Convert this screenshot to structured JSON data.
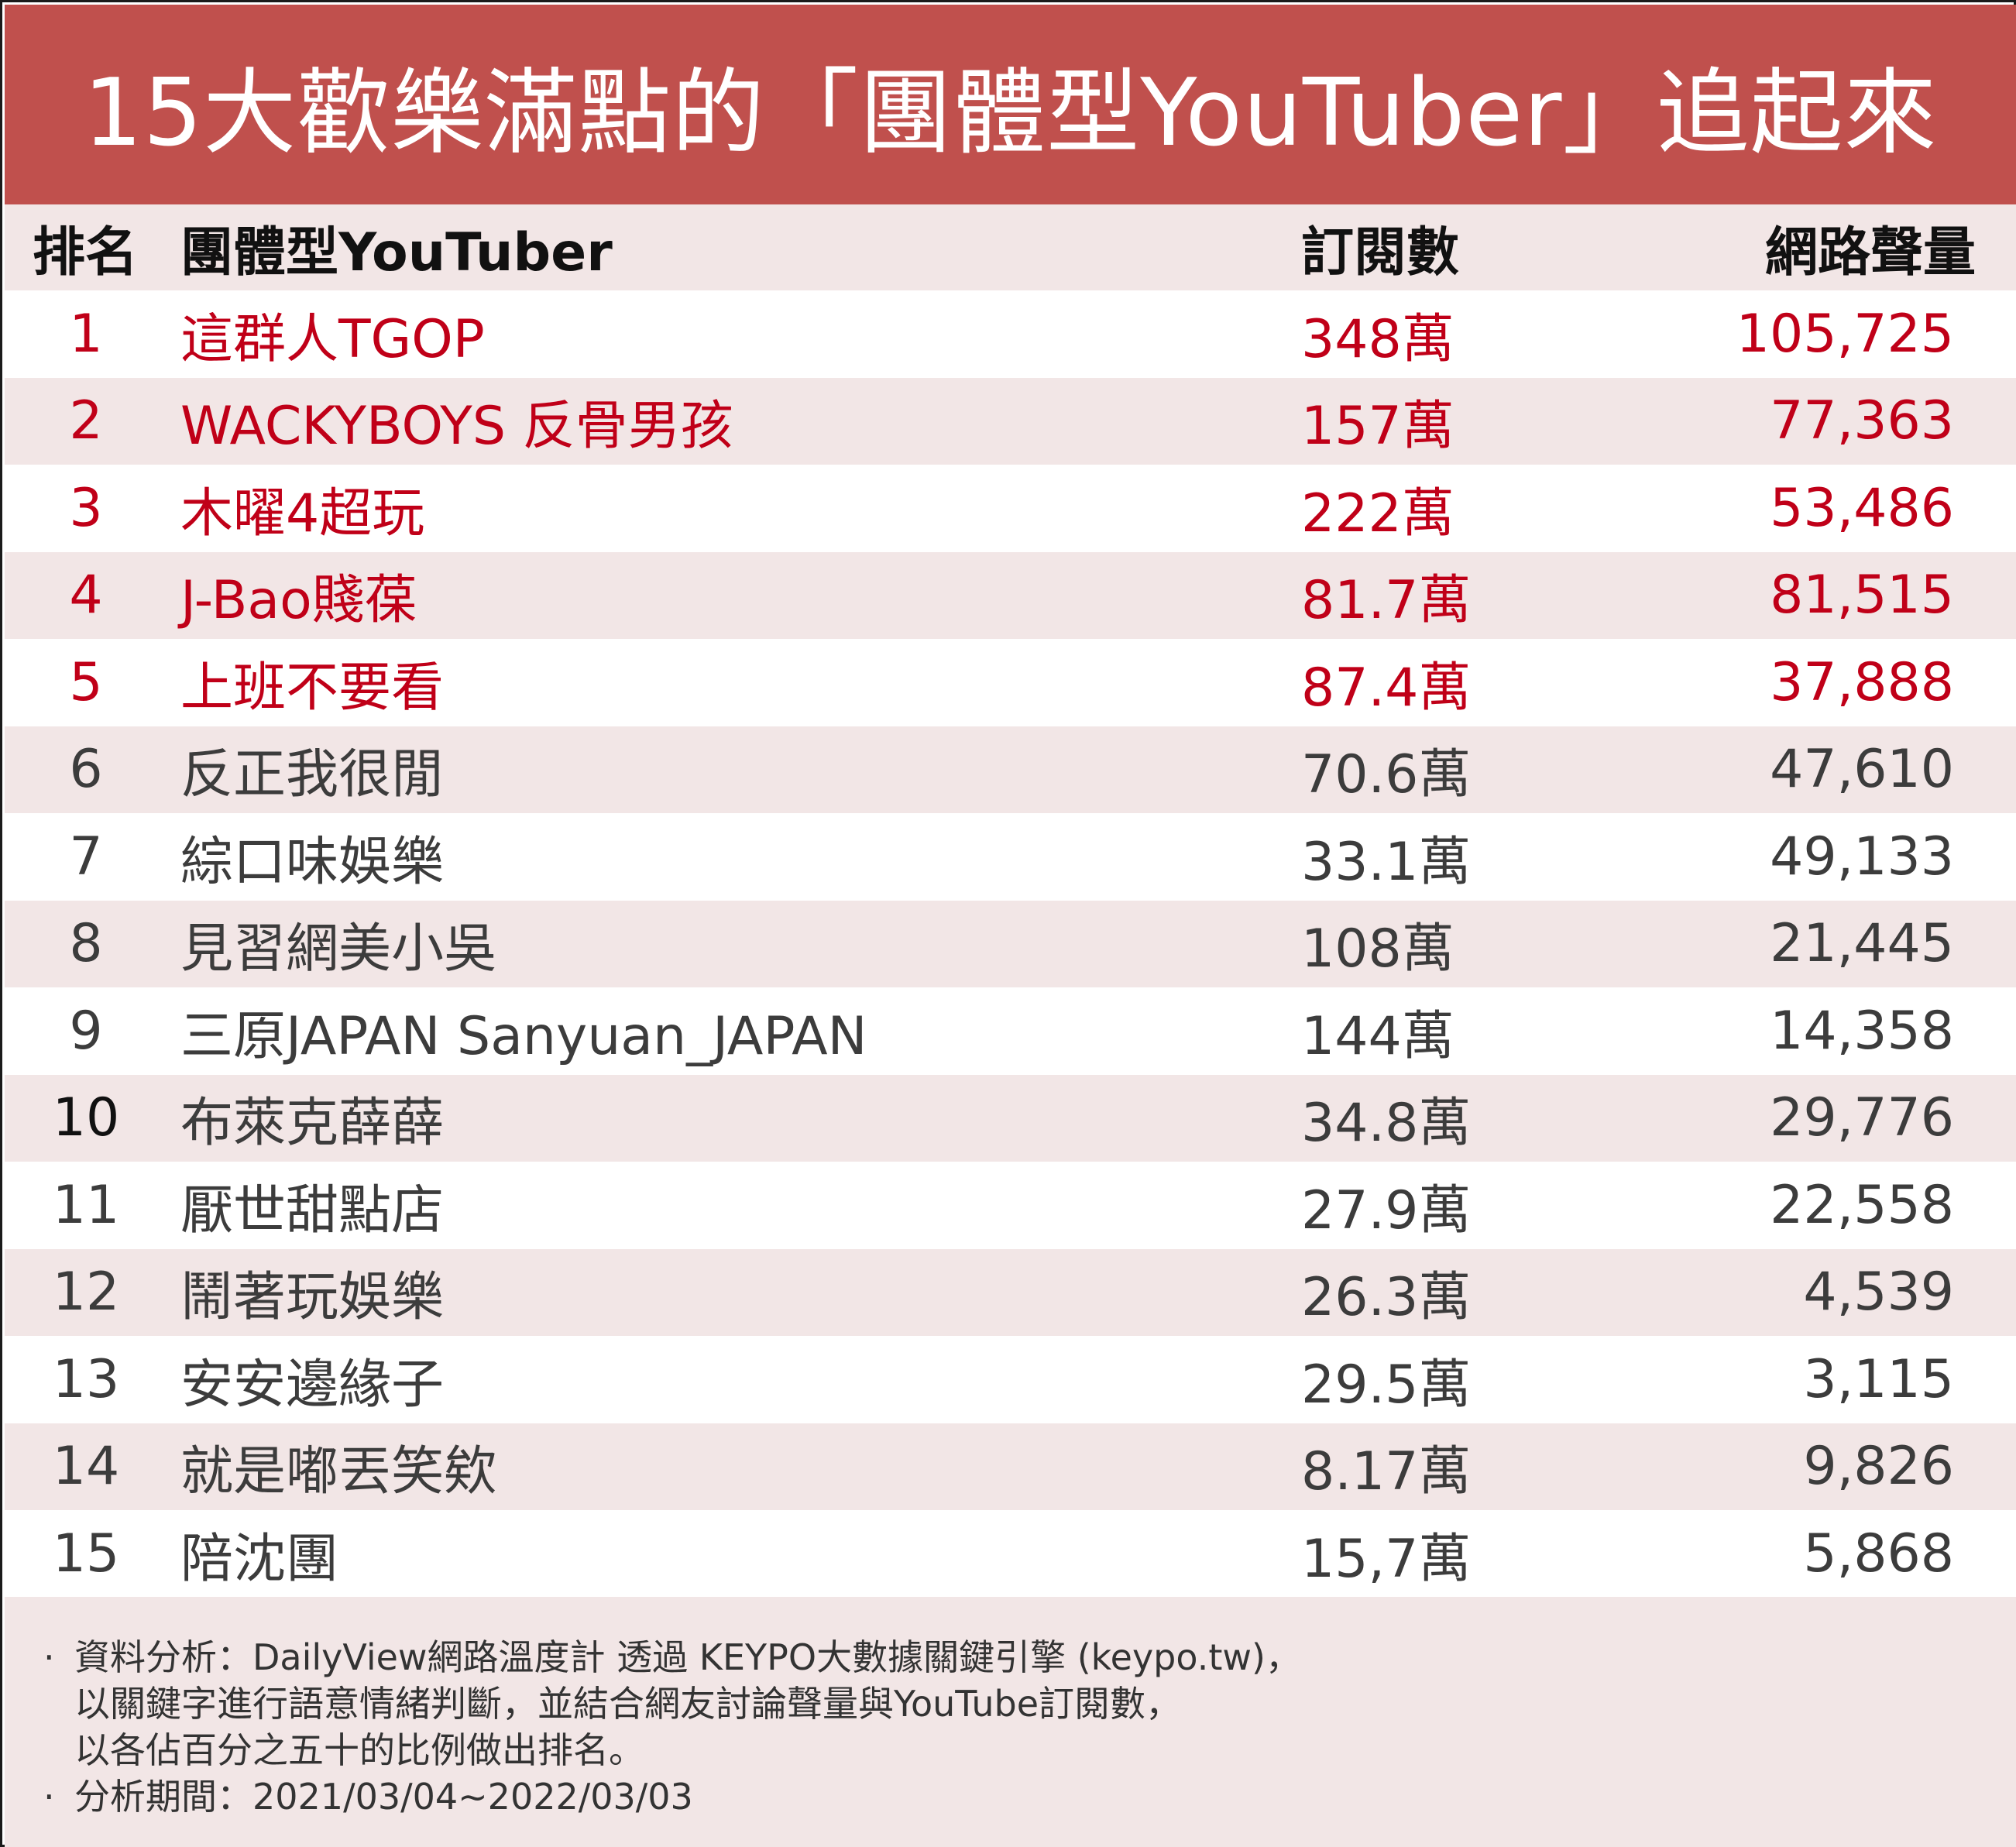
{
  "title": "15大歡樂滿點的「團體型YouTuber」追起來",
  "colors": {
    "title_bg": "#c0504d",
    "highlight_text": "#c00018",
    "row_alt_bg": "#f2e6e6"
  },
  "chart_data": {
    "type": "table",
    "columns": [
      "排名",
      "團體型YouTuber",
      "訂閱數",
      "網路聲量"
    ],
    "rows": [
      {
        "rank": "1",
        "name": "這群人TGOP",
        "subscribers": "348萬",
        "volume": "105,725"
      },
      {
        "rank": "2",
        "name": "WACKYBOYS 反骨男孩",
        "subscribers": "157萬",
        "volume": "77,363"
      },
      {
        "rank": "3",
        "name": "木曜4超玩",
        "subscribers": "222萬",
        "volume": "53,486"
      },
      {
        "rank": "4",
        "name": "J-Bao賤葆",
        "subscribers": "81.7萬",
        "volume": "81,515"
      },
      {
        "rank": "5",
        "name": "上班不要看",
        "subscribers": "87.4萬",
        "volume": "37,888"
      },
      {
        "rank": "6",
        "name": "反正我很閒",
        "subscribers": "70.6萬",
        "volume": "47,610"
      },
      {
        "rank": "7",
        "name": "綜口味娛樂",
        "subscribers": "33.1萬",
        "volume": "49,133"
      },
      {
        "rank": "8",
        "name": "見習網美小吳",
        "subscribers": "108萬",
        "volume": "21,445"
      },
      {
        "rank": "9",
        "name": "三原JAPAN Sanyuan_JAPAN",
        "subscribers": "144萬",
        "volume": "14,358"
      },
      {
        "rank": "10",
        "name": "布萊克薛薛",
        "subscribers": "34.8萬",
        "volume": "29,776"
      },
      {
        "rank": "11",
        "name": "厭世甜點店",
        "subscribers": "27.9萬",
        "volume": "22,558"
      },
      {
        "rank": "12",
        "name": "鬧著玩娛樂",
        "subscribers": "26.3萬",
        "volume": "4,539"
      },
      {
        "rank": "13",
        "name": "安安邊緣子",
        "subscribers": "29.5萬",
        "volume": "3,115"
      },
      {
        "rank": "14",
        "name": "就是嘟丟笑欸",
        "subscribers": "8.17萬",
        "volume": "9,826"
      },
      {
        "rank": "15",
        "name": "陪沈團",
        "subscribers": "15,7萬",
        "volume": "5,868"
      }
    ],
    "highlighted_ranks": [
      "1",
      "2",
      "3",
      "4",
      "5"
    ]
  },
  "notes": {
    "bullet": "·",
    "line1": "資料分析：DailyView網路溫度計 透過 KEYPO大數據關鍵引擎 (keypo.tw)，",
    "line2": "以關鍵字進行語意情緒判斷，並結合網友討論聲量與YouTube訂閱數，",
    "line3": "以各佔百分之五十的比例做出排名。",
    "line4": "分析期間：2021/03/04~2022/03/03"
  }
}
